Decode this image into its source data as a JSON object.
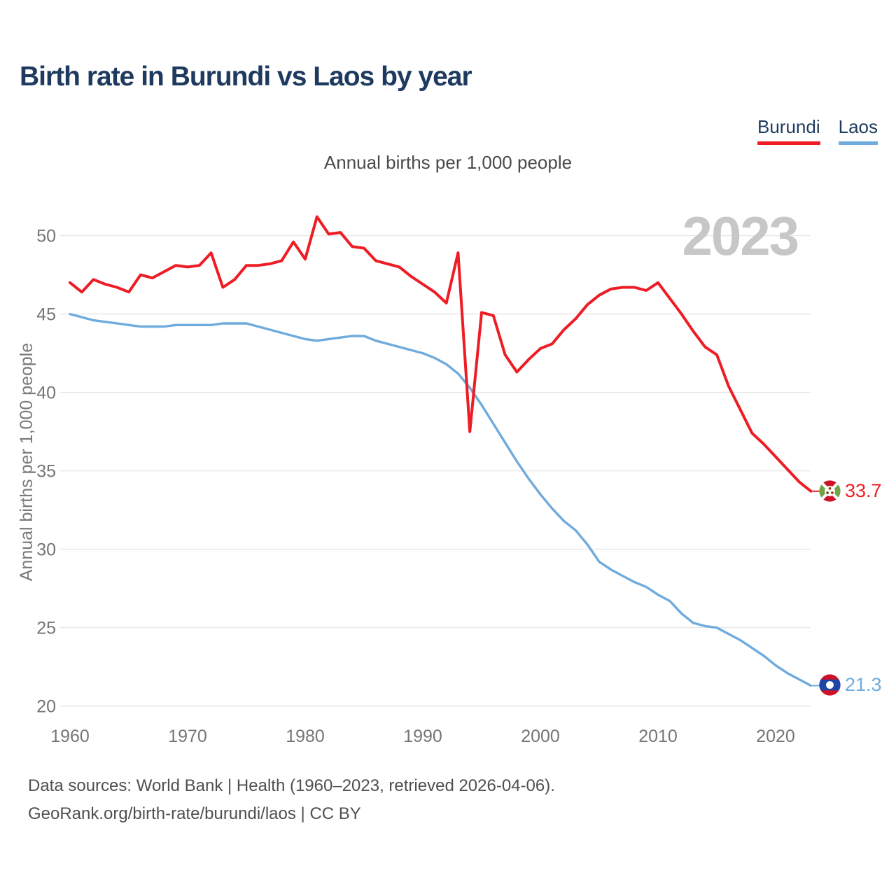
{
  "header": {
    "title": "Birth rate in Burundi vs Laos by year",
    "subtitle": "Annual births per 1,000 people"
  },
  "legend": [
    {
      "label": "Burundi",
      "color": "#ee1c25"
    },
    {
      "label": "Laos",
      "color": "#6fabdd"
    }
  ],
  "watermark": "2023",
  "chart_data": {
    "type": "line",
    "title": "Birth rate in Burundi vs Laos by year",
    "xlabel": "",
    "ylabel": "Annual births per 1,000 people",
    "ylim": [
      20,
      52
    ],
    "yticks": [
      20,
      25,
      30,
      35,
      40,
      45,
      50
    ],
    "xticks": [
      1960,
      1970,
      1980,
      1990,
      2000,
      2010,
      2020
    ],
    "grid": "horizontal",
    "legend_position": "top-right",
    "x": [
      1960,
      1961,
      1962,
      1963,
      1964,
      1965,
      1966,
      1967,
      1968,
      1969,
      1970,
      1971,
      1972,
      1973,
      1974,
      1975,
      1976,
      1977,
      1978,
      1979,
      1980,
      1981,
      1982,
      1983,
      1984,
      1985,
      1986,
      1987,
      1988,
      1989,
      1990,
      1991,
      1992,
      1993,
      1994,
      1995,
      1996,
      1997,
      1998,
      1999,
      2000,
      2001,
      2002,
      2003,
      2004,
      2005,
      2006,
      2007,
      2008,
      2009,
      2010,
      2011,
      2012,
      2013,
      2014,
      2015,
      2016,
      2017,
      2018,
      2019,
      2020,
      2021,
      2022,
      2023
    ],
    "series": [
      {
        "name": "Burundi",
        "color": "#ee1c25",
        "end_label": "33.7",
        "values": [
          47.0,
          46.4,
          47.2,
          46.9,
          46.7,
          46.4,
          47.5,
          47.3,
          47.7,
          48.1,
          48.0,
          48.1,
          48.9,
          46.7,
          47.2,
          48.1,
          48.1,
          48.2,
          48.4,
          49.6,
          48.5,
          51.2,
          50.1,
          50.2,
          49.3,
          49.2,
          48.4,
          48.2,
          48.0,
          47.4,
          46.9,
          46.4,
          45.7,
          48.9,
          37.5,
          45.1,
          44.9,
          42.4,
          41.3,
          42.1,
          42.8,
          43.1,
          44.0,
          44.7,
          45.6,
          46.2,
          46.6,
          46.7,
          46.7,
          46.5,
          47.0,
          46.0,
          45.0,
          43.9,
          42.9,
          42.4,
          40.4,
          38.9,
          37.4,
          36.7,
          35.9,
          35.1,
          34.3,
          33.7
        ]
      },
      {
        "name": "Laos",
        "color": "#6fabdd",
        "end_label": "21.3",
        "values": [
          45.0,
          44.8,
          44.6,
          44.5,
          44.4,
          44.3,
          44.2,
          44.2,
          44.2,
          44.3,
          44.3,
          44.3,
          44.3,
          44.4,
          44.4,
          44.4,
          44.2,
          44.0,
          43.8,
          43.6,
          43.4,
          43.3,
          43.4,
          43.5,
          43.6,
          43.6,
          43.3,
          43.1,
          42.9,
          42.7,
          42.5,
          42.2,
          41.8,
          41.2,
          40.3,
          39.2,
          38.0,
          36.8,
          35.6,
          34.5,
          33.5,
          32.6,
          31.8,
          31.2,
          30.3,
          29.2,
          28.7,
          28.3,
          27.9,
          27.6,
          27.1,
          26.7,
          25.9,
          25.3,
          25.1,
          25.0,
          24.6,
          24.2,
          23.7,
          23.2,
          22.6,
          22.1,
          21.7,
          21.3
        ]
      }
    ]
  },
  "footer": {
    "line1": "Data sources: World Bank | Health (1960–2023, retrieved 2026-04-06).",
    "line2": "GeoRank.org/birth-rate/burundi/laos | CC BY"
  }
}
